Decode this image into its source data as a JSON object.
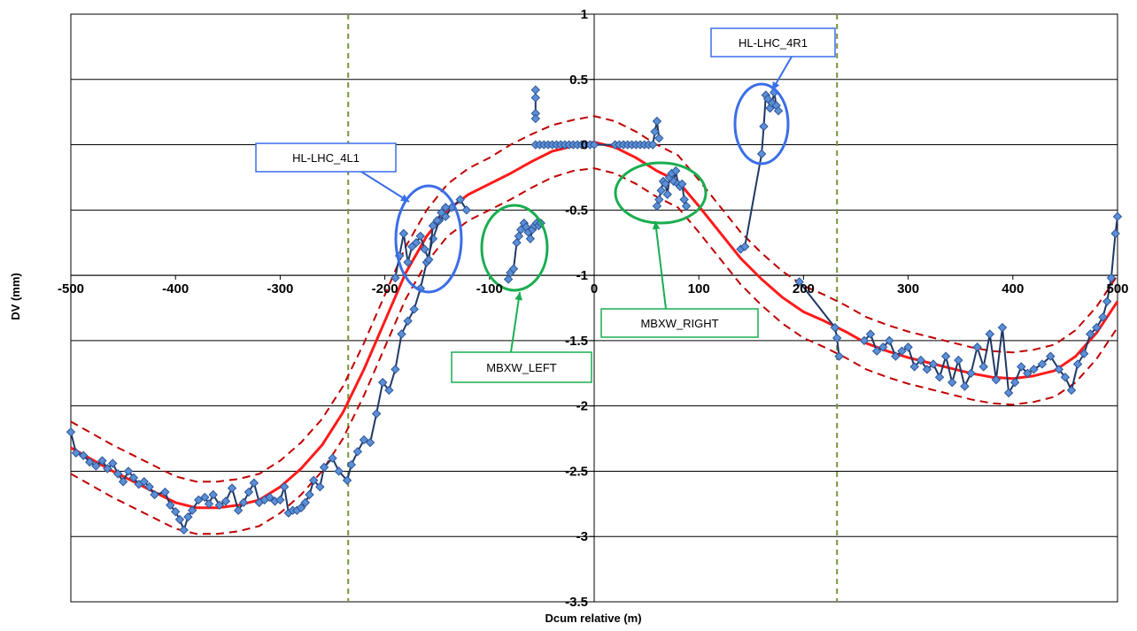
{
  "chart_data": {
    "type": "line",
    "xlabel": "Dcum relative (m)",
    "ylabel": "DV (mm)",
    "xlim": [
      -500,
      500
    ],
    "ylim": [
      -3.5,
      1
    ],
    "x_ticks": [
      -500,
      -400,
      -300,
      -200,
      -100,
      0,
      100,
      200,
      300,
      400,
      500
    ],
    "y_ticks": [
      1,
      0.5,
      0,
      -0.5,
      -1,
      -1.5,
      -2,
      -2.5,
      -3,
      -3.5
    ],
    "grid": "horizontal",
    "vertical_markers": [
      -235,
      232
    ],
    "colors": {
      "measured": "#1f3864",
      "marker_fill": "#5b8fd6",
      "marker_edge": "#2e5597",
      "fit": "#ff1a1a",
      "tolerance": "#c00000",
      "marker_line": "#77933c",
      "blue_annotation": "#3b6ee8",
      "green_annotation": "#19ad50"
    },
    "series": [
      {
        "style": "solid-red",
        "x": [
          -500,
          -460,
          -420,
          -400,
          -380,
          -360,
          -340,
          -320,
          -300,
          -280,
          -260,
          -240,
          -220,
          -200,
          -180,
          -160,
          -140,
          -120,
          -100,
          -80,
          -60,
          -40,
          -20,
          0,
          20,
          40,
          60,
          80,
          100,
          120,
          140,
          160,
          180,
          200,
          220,
          240,
          260,
          280,
          300,
          320,
          340,
          360,
          380,
          400,
          420,
          440,
          460,
          480,
          500
        ],
        "values": [
          -2.32,
          -2.5,
          -2.66,
          -2.74,
          -2.78,
          -2.78,
          -2.76,
          -2.72,
          -2.62,
          -2.48,
          -2.3,
          -2.05,
          -1.72,
          -1.35,
          -0.98,
          -0.7,
          -0.5,
          -0.38,
          -0.3,
          -0.22,
          -0.13,
          -0.05,
          -0.01,
          0.02,
          -0.02,
          -0.1,
          -0.2,
          -0.28,
          -0.47,
          -0.67,
          -0.87,
          -1.03,
          -1.17,
          -1.28,
          -1.35,
          -1.43,
          -1.52,
          -1.58,
          -1.63,
          -1.67,
          -1.71,
          -1.75,
          -1.78,
          -1.79,
          -1.77,
          -1.73,
          -1.62,
          -1.44,
          -1.2
        ]
      },
      {
        "style": "dashed-upper",
        "x": [
          -500,
          -460,
          -420,
          -400,
          -380,
          -360,
          -340,
          -320,
          -300,
          -280,
          -260,
          -240,
          -220,
          -200,
          -180,
          -160,
          -140,
          -120,
          -100,
          -80,
          -60,
          -40,
          -20,
          0,
          20,
          40,
          60,
          80,
          100,
          120,
          140,
          160,
          180,
          200,
          220,
          240,
          260,
          280,
          300,
          320,
          340,
          360,
          380,
          400,
          420,
          440,
          460,
          480,
          500
        ],
        "values": [
          -2.12,
          -2.3,
          -2.46,
          -2.54,
          -2.58,
          -2.58,
          -2.56,
          -2.52,
          -2.42,
          -2.28,
          -2.1,
          -1.85,
          -1.52,
          -1.15,
          -0.78,
          -0.5,
          -0.3,
          -0.18,
          -0.1,
          0.0,
          0.08,
          0.15,
          0.19,
          0.22,
          0.18,
          0.1,
          0.0,
          -0.08,
          -0.27,
          -0.47,
          -0.67,
          -0.83,
          -0.97,
          -1.08,
          -1.15,
          -1.23,
          -1.32,
          -1.38,
          -1.43,
          -1.47,
          -1.51,
          -1.55,
          -1.58,
          -1.59,
          -1.57,
          -1.53,
          -1.42,
          -1.24,
          -1.0
        ]
      },
      {
        "style": "dashed-lower",
        "x": [
          -500,
          -460,
          -420,
          -400,
          -380,
          -360,
          -340,
          -320,
          -300,
          -280,
          -260,
          -240,
          -220,
          -200,
          -180,
          -160,
          -140,
          -120,
          -100,
          -80,
          -60,
          -40,
          -20,
          0,
          20,
          40,
          60,
          80,
          100,
          120,
          140,
          160,
          180,
          200,
          220,
          240,
          260,
          280,
          300,
          320,
          340,
          360,
          380,
          400,
          420,
          440,
          460,
          480,
          500
        ],
        "values": [
          -2.52,
          -2.7,
          -2.86,
          -2.94,
          -2.98,
          -2.98,
          -2.96,
          -2.92,
          -2.82,
          -2.68,
          -2.5,
          -2.25,
          -1.92,
          -1.55,
          -1.18,
          -0.9,
          -0.7,
          -0.58,
          -0.5,
          -0.42,
          -0.33,
          -0.25,
          -0.2,
          -0.18,
          -0.22,
          -0.3,
          -0.4,
          -0.48,
          -0.67,
          -0.87,
          -1.07,
          -1.23,
          -1.37,
          -1.48,
          -1.55,
          -1.63,
          -1.72,
          -1.78,
          -1.83,
          -1.87,
          -1.91,
          -1.95,
          -1.98,
          -1.99,
          -1.97,
          -1.93,
          -1.82,
          -1.64,
          -1.4
        ]
      },
      {
        "style": "measured",
        "x": [
          -500,
          -495,
          -488,
          -482,
          -476,
          -470,
          -465,
          -460,
          -455,
          -450,
          -445,
          -440,
          -435,
          -430,
          -425,
          -420,
          -410,
          -405,
          -400,
          -396,
          -392,
          -388,
          -384,
          -378,
          -372,
          -368,
          -364,
          -358,
          -352,
          -346,
          -340,
          -335,
          -330,
          -325,
          -320,
          -315,
          -310,
          -305,
          -300,
          -296,
          -292,
          -288,
          -284,
          -280,
          -276,
          -272,
          -268,
          -262,
          -258,
          -250,
          -244,
          -236,
          -232,
          -226,
          -220,
          -214,
          -208,
          -202,
          -196,
          -190,
          -184,
          -178,
          -172,
          -166,
          -160,
          -154,
          -148,
          -142,
          -136,
          -128,
          -122
        ],
        "values": [
          -2.2,
          -2.36,
          -2.38,
          -2.43,
          -2.46,
          -2.42,
          -2.48,
          -2.44,
          -2.52,
          -2.58,
          -2.5,
          -2.55,
          -2.6,
          -2.58,
          -2.62,
          -2.68,
          -2.66,
          -2.76,
          -2.81,
          -2.87,
          -2.95,
          -2.85,
          -2.8,
          -2.72,
          -2.7,
          -2.75,
          -2.68,
          -2.76,
          -2.73,
          -2.63,
          -2.8,
          -2.74,
          -2.66,
          -2.59,
          -2.74,
          -2.72,
          -2.7,
          -2.73,
          -2.72,
          -2.62,
          -2.82,
          -2.8,
          -2.8,
          -2.78,
          -2.74,
          -2.68,
          -2.57,
          -2.62,
          -2.47,
          -2.4,
          -2.5,
          -2.57,
          -2.45,
          -2.35,
          -2.26,
          -2.28,
          -2.06,
          -1.82,
          -1.88,
          -1.72,
          -1.45,
          -1.35,
          -1.26,
          -1.1,
          -0.9,
          -0.72,
          -0.58,
          -0.55,
          -0.48,
          -0.42,
          -0.5
        ]
      },
      {
        "style": "measured",
        "x": [
          -190,
          -186,
          -182,
          -178,
          -174,
          -170,
          -166,
          -162,
          -158,
          -154,
          -150,
          -146,
          -142
        ],
        "values": [
          -1.02,
          -0.85,
          -0.68,
          -0.9,
          -0.78,
          -0.75,
          -0.7,
          -0.8,
          -0.88,
          -0.62,
          -0.58,
          -0.52,
          -0.48
        ]
      },
      {
        "style": "measured",
        "x": [
          -82,
          -80,
          -77,
          -74,
          -72,
          -70,
          -67,
          -65,
          -63,
          -61,
          -59,
          -57,
          -55,
          -53,
          -51
        ],
        "values": [
          -1.03,
          -0.98,
          -0.95,
          -0.75,
          -0.7,
          -0.65,
          -0.6,
          -0.63,
          -0.67,
          -0.72,
          -0.65,
          -0.62,
          -0.6,
          -0.62,
          -0.6
        ]
      },
      {
        "style": "measured",
        "x": [
          -56,
          -56,
          -56,
          -56
        ],
        "values": [
          0.42,
          0.36,
          0.24,
          0.2
        ]
      },
      {
        "style": "measured",
        "x": [
          -56,
          -52,
          -48,
          -44,
          -40,
          -36,
          -32,
          -28,
          -24,
          -20,
          -16,
          -12,
          -8,
          -4
        ],
        "values": [
          0.0,
          0.0,
          0.0,
          0.0,
          0.0,
          0.0,
          0.0,
          0.0,
          0.0,
          0.0,
          0.0,
          0.0,
          0.0,
          0.0
        ]
      },
      {
        "style": "measured",
        "x": [
          0,
          20,
          24,
          28,
          32,
          36,
          40,
          44,
          48,
          52,
          56,
          58,
          60,
          62
        ],
        "values": [
          0.0,
          0.0,
          0.0,
          0.0,
          0.0,
          0.0,
          0.0,
          0.0,
          0.0,
          0.0,
          0.0,
          0.1,
          0.18,
          0.05
        ]
      },
      {
        "style": "measured",
        "x": [
          60,
          62,
          64,
          66,
          68,
          70,
          72,
          74,
          76,
          78,
          80,
          82,
          84,
          86,
          88
        ],
        "values": [
          -0.47,
          -0.42,
          -0.35,
          -0.28,
          -0.3,
          -0.38,
          -0.25,
          -0.22,
          -0.28,
          -0.2,
          -0.3,
          -0.32,
          -0.3,
          -0.42,
          -0.47
        ]
      },
      {
        "style": "measured",
        "x": [
          140,
          144,
          160,
          162,
          164,
          166,
          168,
          170,
          172,
          174,
          176
        ],
        "values": [
          -0.8,
          -0.78,
          -0.07,
          0.14,
          0.38,
          0.35,
          0.28,
          0.32,
          0.4,
          0.3,
          0.26
        ]
      },
      {
        "style": "measured",
        "x": [
          196,
          230,
          232,
          234
        ],
        "values": [
          -1.05,
          -1.4,
          -1.48,
          -1.62
        ]
      },
      {
        "style": "measured",
        "x": [
          258,
          264,
          270,
          276,
          282,
          288,
          294,
          300,
          306,
          312,
          318,
          324,
          330,
          336,
          342,
          348,
          354,
          360,
          366,
          372,
          378,
          384,
          390,
          396,
          402,
          408,
          414,
          420,
          428,
          436,
          444,
          450,
          456,
          462,
          468,
          474,
          480,
          486,
          490,
          494,
          498,
          500
        ],
        "values": [
          -1.5,
          -1.45,
          -1.58,
          -1.55,
          -1.5,
          -1.62,
          -1.58,
          -1.55,
          -1.7,
          -1.65,
          -1.72,
          -1.68,
          -1.78,
          -1.62,
          -1.82,
          -1.65,
          -1.85,
          -1.75,
          -1.55,
          -1.7,
          -1.45,
          -1.8,
          -1.4,
          -1.9,
          -1.82,
          -1.7,
          -1.75,
          -1.72,
          -1.68,
          -1.62,
          -1.72,
          -1.78,
          -1.88,
          -1.68,
          -1.6,
          -1.45,
          -1.4,
          -1.32,
          -1.2,
          -1.02,
          -0.68,
          -0.55
        ]
      }
    ],
    "annotations": [
      {
        "label": "HL-LHC_4L1",
        "color": "blue"
      },
      {
        "label": "HL-LHC_4R1",
        "color": "blue"
      },
      {
        "label": "MBXW_LEFT",
        "color": "green"
      },
      {
        "label": "MBXW_RIGHT",
        "color": "green"
      }
    ]
  }
}
